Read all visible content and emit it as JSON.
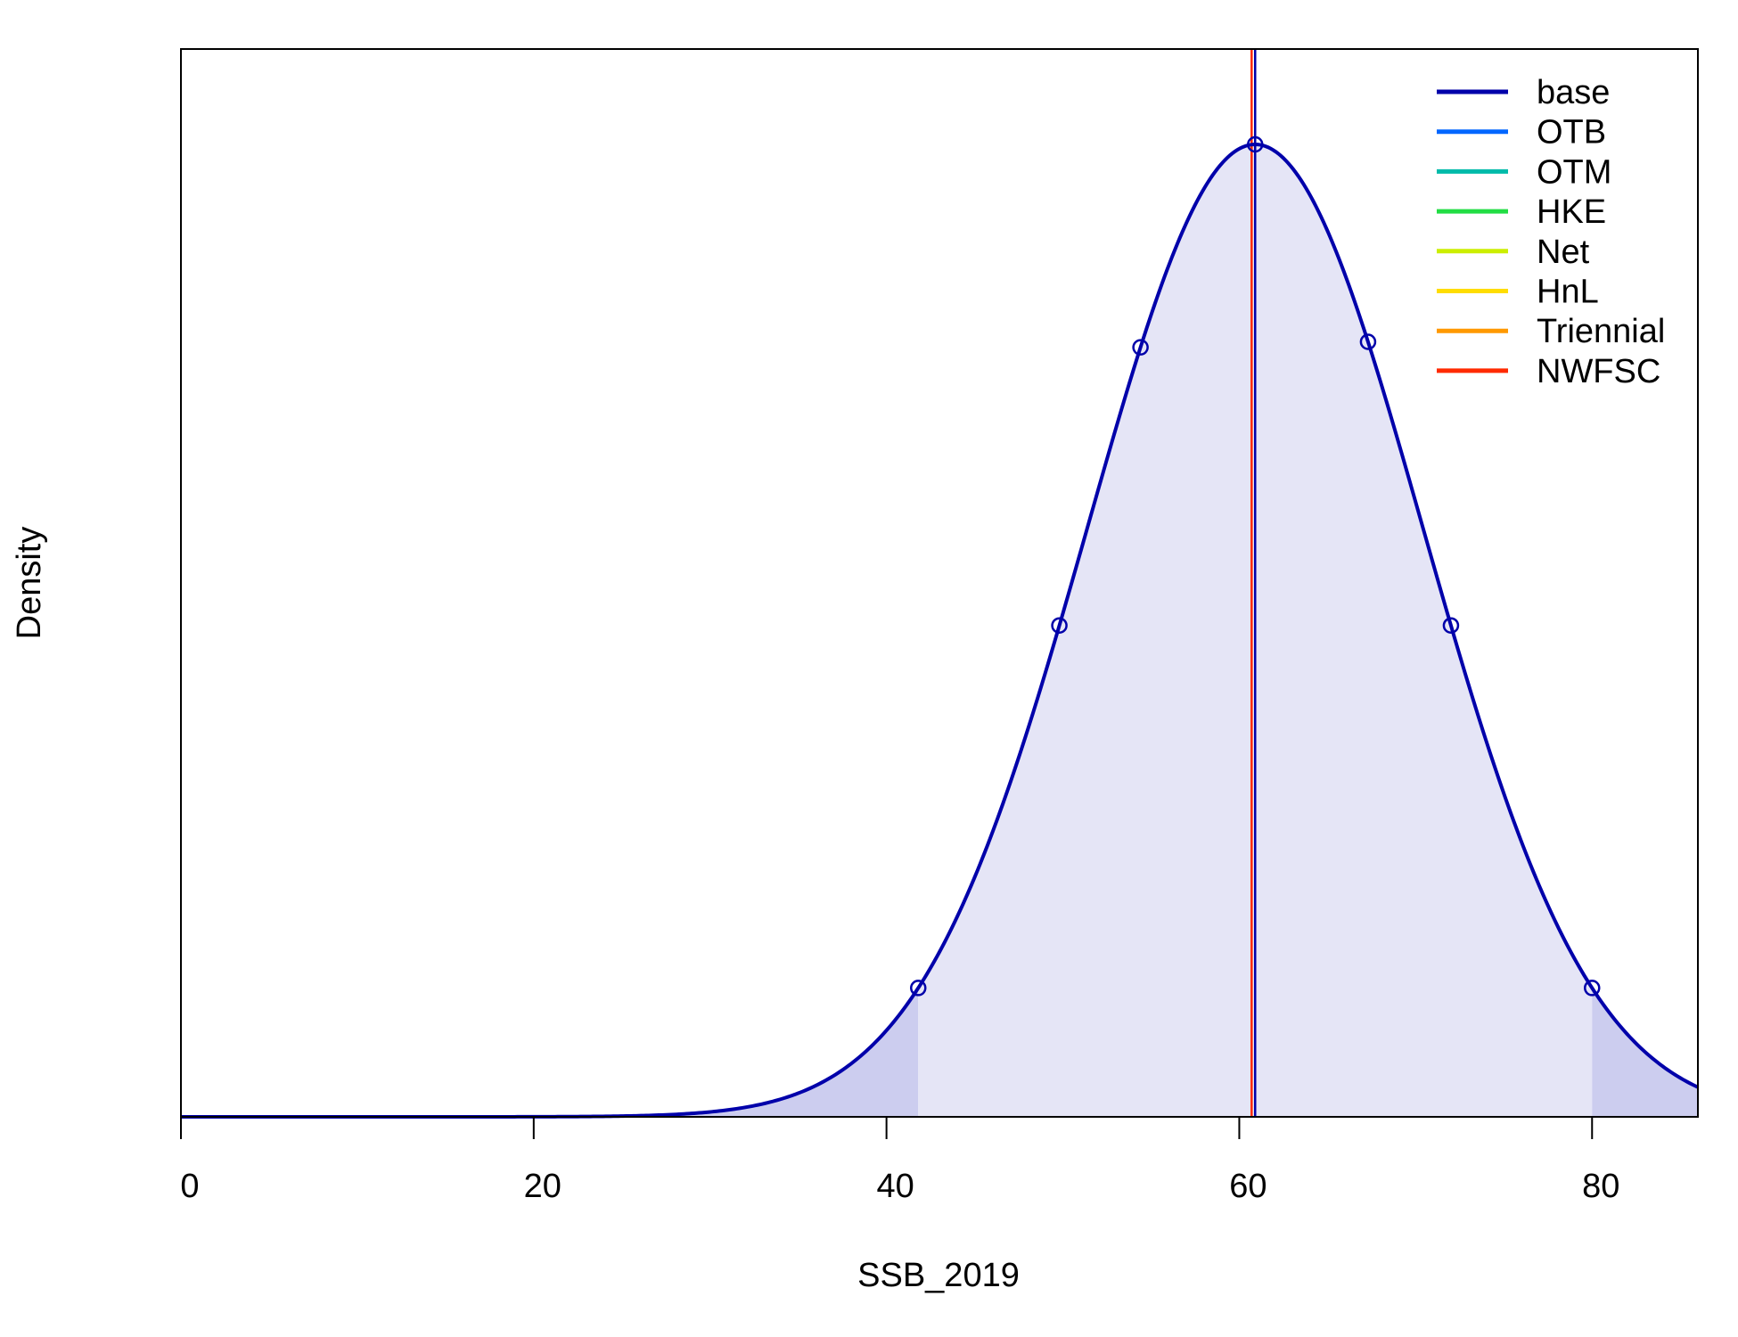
{
  "chart_data": {
    "type": "line",
    "title": "",
    "xlabel": "SSB_2019",
    "ylabel": "Density",
    "xlim": [
      0,
      86
    ],
    "y_ticks_shown": false,
    "x_ticks": [
      0,
      20,
      40,
      60,
      80
    ],
    "distribution": {
      "name": "base",
      "mean": 60.9,
      "sd": 9.5,
      "interval_95": [
        41.8,
        80.0
      ]
    },
    "marker_quantiles_x": [
      41.8,
      49.8,
      54.4,
      60.9,
      67.3,
      72.0,
      80.0
    ],
    "vertical_lines": [
      {
        "series": "NWFSC",
        "x": 60.7,
        "color": "#ff2a00"
      },
      {
        "series": "base",
        "x": 60.9,
        "color": "#0000aa"
      }
    ],
    "legend": {
      "position": "top-right",
      "entries": [
        {
          "label": "base",
          "color": "#0000aa"
        },
        {
          "label": "OTB",
          "color": "#0066ff"
        },
        {
          "label": "OTM",
          "color": "#00bbaa"
        },
        {
          "label": "HKE",
          "color": "#22dd44"
        },
        {
          "label": "Net",
          "color": "#ccee00"
        },
        {
          "label": "HnL",
          "color": "#ffdd00"
        },
        {
          "label": "Triennial",
          "color": "#ff9900"
        },
        {
          "label": "NWFSC",
          "color": "#ff2a00"
        }
      ]
    },
    "fill_colors": {
      "central": "#e5e5f6",
      "tails": "#cccdef"
    }
  }
}
